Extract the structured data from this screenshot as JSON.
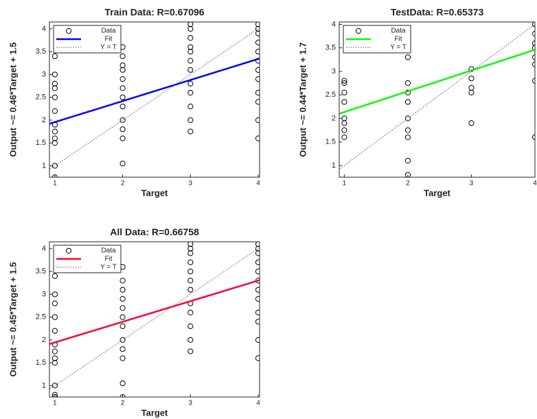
{
  "chart_data": [
    {
      "type": "scatter",
      "title": "Train Data: R=0.67096",
      "xlabel": "Target",
      "ylabel": "Output ~= 0.46*Target + 1.5",
      "xlim": [
        0.92,
        4.02
      ],
      "ylim": [
        0.75,
        4.15
      ],
      "xticks": [
        1,
        2,
        3,
        4
      ],
      "yticks": [
        1,
        1.5,
        2,
        2.5,
        3,
        3.5,
        4
      ],
      "legend": "upper left",
      "series": [
        {
          "name": "Data",
          "color": "#000000",
          "style": "markers",
          "x": [
            1,
            1,
            1,
            1,
            1,
            1,
            1,
            1,
            1,
            1,
            1,
            1,
            2,
            2,
            2,
            2,
            2,
            2,
            2,
            2,
            2,
            2,
            2,
            2,
            3,
            3,
            3,
            3,
            3,
            3,
            3,
            3,
            3,
            3,
            3,
            3,
            4,
            4,
            4,
            4,
            4,
            4,
            4,
            4,
            4,
            4,
            4,
            4
          ],
          "values": [
            0.75,
            1.0,
            1.5,
            1.6,
            1.75,
            1.9,
            2.2,
            2.5,
            2.7,
            2.8,
            3.0,
            3.4,
            1.05,
            1.6,
            1.8,
            2.0,
            2.3,
            2.5,
            2.7,
            2.9,
            3.1,
            3.2,
            3.4,
            3.6,
            1.75,
            2.0,
            2.3,
            2.6,
            2.8,
            3.1,
            3.3,
            3.5,
            3.6,
            3.8,
            4.0,
            4.1,
            1.6,
            2.0,
            2.4,
            2.6,
            2.9,
            3.1,
            3.3,
            3.5,
            3.7,
            3.9,
            4.0,
            4.1
          ]
        },
        {
          "name": "Fit",
          "color": "#0000ff",
          "style": "solid",
          "x": [
            0.92,
            4.02
          ],
          "values": [
            1.92,
            3.35
          ]
        },
        {
          "name": "Y = T",
          "color": "#555555",
          "style": "dotted",
          "x": [
            0.75,
            4.15
          ],
          "values": [
            0.75,
            4.15
          ]
        }
      ]
    },
    {
      "type": "scatter",
      "title": "TestData: R=0.65373",
      "xlabel": "Target",
      "ylabel": "Output ~= 0.44*Target + 1.7",
      "xlim": [
        0.92,
        4.0
      ],
      "ylim": [
        0.75,
        4.05
      ],
      "xticks": [
        1,
        2,
        3,
        4
      ],
      "yticks": [
        1,
        1.5,
        2,
        2.5,
        3,
        3.5,
        4
      ],
      "legend": "upper left",
      "series": [
        {
          "name": "Data",
          "color": "#000000",
          "style": "markers",
          "x": [
            1,
            1,
            1,
            1,
            1,
            1,
            1,
            1,
            2,
            2,
            2,
            2,
            2,
            2,
            2,
            2,
            2,
            2,
            3,
            3,
            3,
            3,
            3,
            4,
            4,
            4,
            4,
            4,
            4,
            4,
            4
          ],
          "values": [
            1.6,
            1.75,
            1.9,
            2.0,
            2.35,
            2.55,
            2.75,
            2.8,
            0.8,
            1.1,
            1.6,
            1.75,
            2.0,
            2.35,
            2.55,
            2.75,
            3.3,
            3.45,
            1.9,
            2.55,
            2.65,
            2.85,
            3.05,
            1.6,
            2.8,
            3.15,
            3.3,
            3.5,
            3.6,
            3.8,
            4.0
          ]
        },
        {
          "name": "Fit",
          "color": "#00ff00",
          "style": "solid",
          "x": [
            0.92,
            4.0
          ],
          "values": [
            2.1,
            3.46
          ]
        },
        {
          "name": "Y = T",
          "color": "#555555",
          "style": "dotted",
          "x": [
            0.75,
            4.05
          ],
          "values": [
            0.75,
            4.05
          ]
        }
      ]
    },
    {
      "type": "scatter",
      "title": "All Data: R=0.66758",
      "xlabel": "Target",
      "ylabel": "Output ~= 0.45*Target + 1.5",
      "xlim": [
        0.92,
        4.02
      ],
      "ylim": [
        0.75,
        4.15
      ],
      "xticks": [
        1,
        2,
        3,
        4
      ],
      "yticks": [
        1,
        1.5,
        2,
        2.5,
        3,
        3.5,
        4
      ],
      "legend": "upper left",
      "series": [
        {
          "name": "Data",
          "color": "#000000",
          "style": "markers",
          "x": [
            1,
            1,
            1,
            1,
            1,
            1,
            1,
            1,
            1,
            1,
            1,
            1,
            2,
            2,
            2,
            2,
            2,
            2,
            2,
            2,
            2,
            2,
            2,
            2,
            3,
            3,
            3,
            3,
            3,
            3,
            3,
            3,
            3,
            3,
            3,
            3,
            4,
            4,
            4,
            4,
            4,
            4,
            4,
            4,
            4,
            4,
            4,
            4
          ],
          "values": [
            0.75,
            0.8,
            1.0,
            1.5,
            1.6,
            1.75,
            1.9,
            2.2,
            2.5,
            2.8,
            3.0,
            3.4,
            0.75,
            1.05,
            1.6,
            1.8,
            2.0,
            2.3,
            2.5,
            2.7,
            2.9,
            3.1,
            3.3,
            3.6,
            1.75,
            2.0,
            2.3,
            2.6,
            2.8,
            3.1,
            3.3,
            3.5,
            3.7,
            3.9,
            4.0,
            4.1,
            1.6,
            2.0,
            2.4,
            2.6,
            2.9,
            3.1,
            3.3,
            3.5,
            3.7,
            3.9,
            4.0,
            4.1
          ]
        },
        {
          "name": "Fit",
          "color": "#ff0033",
          "style": "solid",
          "x": [
            0.92,
            4.02
          ],
          "values": [
            1.91,
            3.31
          ]
        },
        {
          "name": "Y = T",
          "color": "#555555",
          "style": "dotted",
          "x": [
            0.75,
            4.15
          ],
          "values": [
            0.75,
            4.15
          ]
        }
      ]
    }
  ]
}
